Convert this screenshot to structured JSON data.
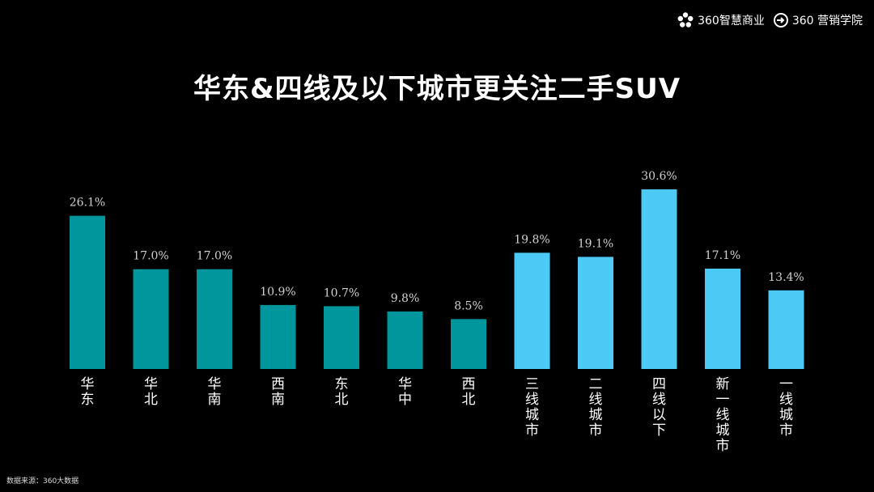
{
  "brand": {
    "logo1_label": "360智慧商业",
    "logo2_label": "360 营销学院",
    "logo1_icon": "flower-icon",
    "logo2_icon": "circle-arrow-icon"
  },
  "title": "华东&四线及以下城市更关注二手SUV",
  "source": "数据来源：360大数据",
  "colors": {
    "region": "#00969b",
    "city": "#4cc9f5"
  },
  "chart_data": {
    "type": "bar",
    "categories": [
      "华东",
      "华北",
      "华南",
      "西南",
      "东北",
      "华中",
      "西北",
      "三线城市",
      "二线城市",
      "四线以下",
      "新一线城市",
      "一线城市"
    ],
    "values": [
      26.1,
      17.0,
      17.0,
      10.9,
      10.7,
      9.8,
      8.5,
      19.8,
      19.1,
      30.6,
      17.1,
      13.4
    ],
    "labels": [
      "26.1%",
      "17.0%",
      "17.0%",
      "10.9%",
      "10.7%",
      "9.8%",
      "8.5%",
      "19.8%",
      "19.1%",
      "30.6%",
      "17.1%",
      "13.4%"
    ],
    "groups": [
      "region",
      "region",
      "region",
      "region",
      "region",
      "region",
      "region",
      "city",
      "city",
      "city",
      "city",
      "city"
    ],
    "title": "华东&四线及以下城市更关注二手SUV",
    "xlabel": "",
    "ylabel": "",
    "ylim": [
      0,
      30.6
    ],
    "grid": false,
    "legend": "none"
  }
}
